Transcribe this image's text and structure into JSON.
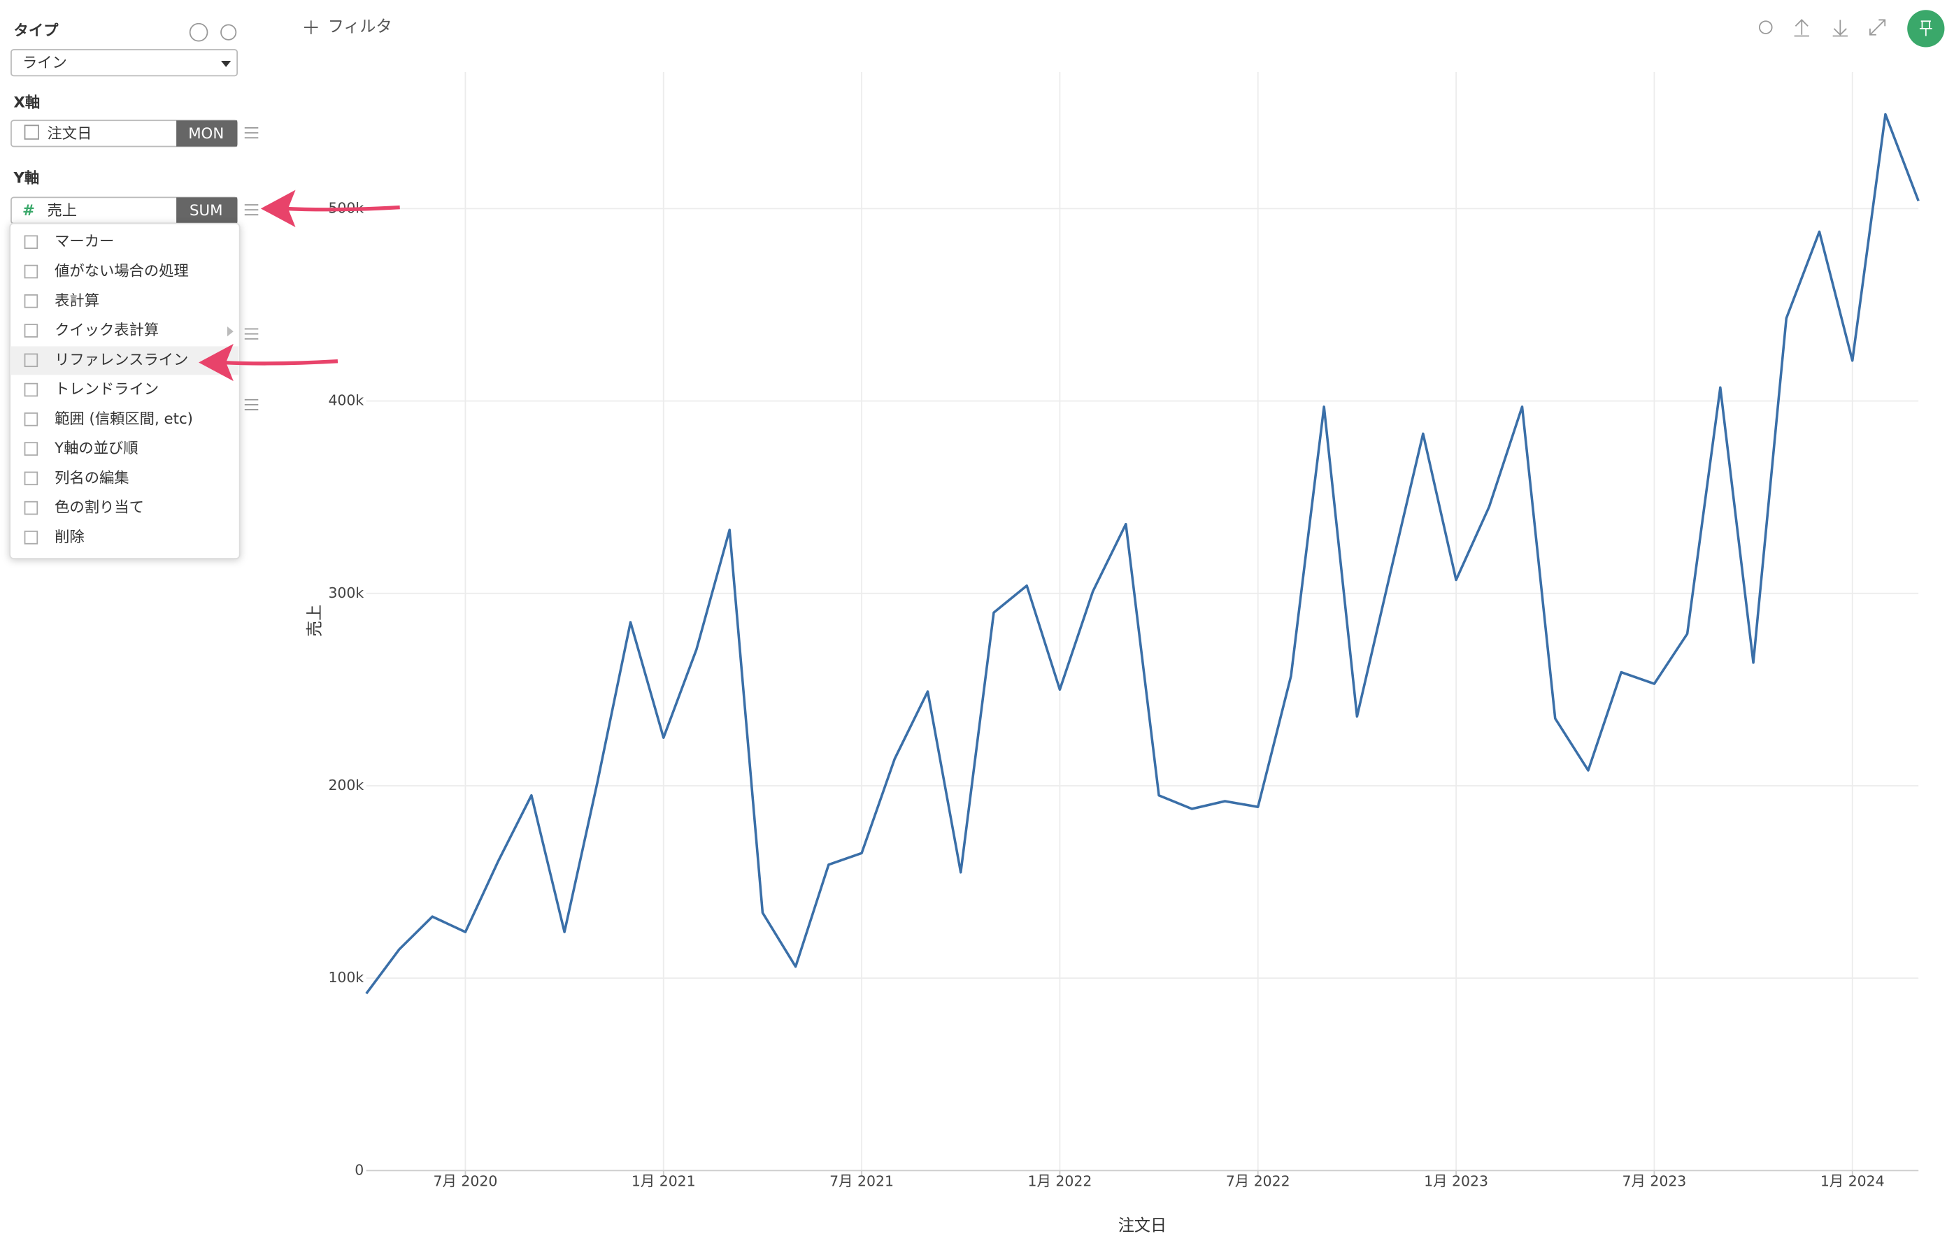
{
  "sidebar": {
    "type_label": "タイプ",
    "type_value": "ライン",
    "x_axis_label": "X軸",
    "x_field": "注文日",
    "x_agg": "MON",
    "y_axis_label": "Y軸",
    "y_field": "売上",
    "y_agg": "SUM",
    "menu": [
      "マーカー",
      "値がない場合の処理",
      "表計算",
      "クイック表計算",
      "リファレンスライン",
      "トレンドライン",
      "範囲 (信頼区間, etc)",
      "Y軸の並び順",
      "列名の編集",
      "色の割り当て",
      "削除"
    ]
  },
  "toolbar": {
    "filter": "フィルタ"
  },
  "chart_data": {
    "type": "line",
    "x_label": "注文日",
    "y_label": "売上",
    "color": "#3a6fa8",
    "grid": true,
    "x": [
      "2020-04",
      "2020-05",
      "2020-06",
      "2020-07",
      "2020-08",
      "2020-09",
      "2020-10",
      "2020-11",
      "2020-12",
      "2021-01",
      "2021-02",
      "2021-03",
      "2021-04",
      "2021-05",
      "2021-06",
      "2021-07",
      "2021-08",
      "2021-09",
      "2021-10",
      "2021-11",
      "2021-12",
      "2022-01",
      "2022-02",
      "2022-03",
      "2022-04",
      "2022-05",
      "2022-06",
      "2022-07",
      "2022-08",
      "2022-09",
      "2022-10",
      "2022-11",
      "2022-12",
      "2023-01",
      "2023-02",
      "2023-03",
      "2023-04",
      "2023-05",
      "2023-06",
      "2023-07",
      "2023-08",
      "2023-09",
      "2023-10",
      "2023-11",
      "2023-12",
      "2024-01",
      "2024-02",
      "2024-03"
    ],
    "values": [
      92000,
      115000,
      132000,
      124000,
      161000,
      195000,
      124000,
      202000,
      285000,
      225000,
      271000,
      333000,
      134000,
      106000,
      159000,
      165000,
      214000,
      249000,
      155000,
      290000,
      304000,
      250000,
      301000,
      336000,
      195000,
      188000,
      192000,
      189000,
      257000,
      397000,
      236000,
      310000,
      383000,
      307000,
      345000,
      397000,
      235000,
      208000,
      259000,
      253000,
      279000,
      407000,
      264000,
      443000,
      488000,
      421000,
      549000,
      504000
    ],
    "xlim": [
      "2020-04",
      "2024-03"
    ],
    "xticks": [
      {
        "value": "2020-07",
        "label": "7月 2020"
      },
      {
        "value": "2021-01",
        "label": "1月 2021"
      },
      {
        "value": "2021-07",
        "label": "7月 2021"
      },
      {
        "value": "2022-01",
        "label": "1月 2022"
      },
      {
        "value": "2022-07",
        "label": "7月 2022"
      },
      {
        "value": "2023-01",
        "label": "1月 2023"
      },
      {
        "value": "2023-07",
        "label": "7月 2023"
      },
      {
        "value": "2024-01",
        "label": "1月 2024"
      }
    ],
    "ylim": [
      0,
      571000
    ],
    "yticks": [
      0,
      {
        "value": 100000,
        "label": "100k"
      },
      {
        "value": 200000,
        "label": "200k"
      },
      {
        "value": 300000,
        "label": "300k"
      },
      {
        "value": 400000,
        "label": "400k"
      },
      {
        "value": 500000,
        "label": "500k"
      }
    ]
  }
}
